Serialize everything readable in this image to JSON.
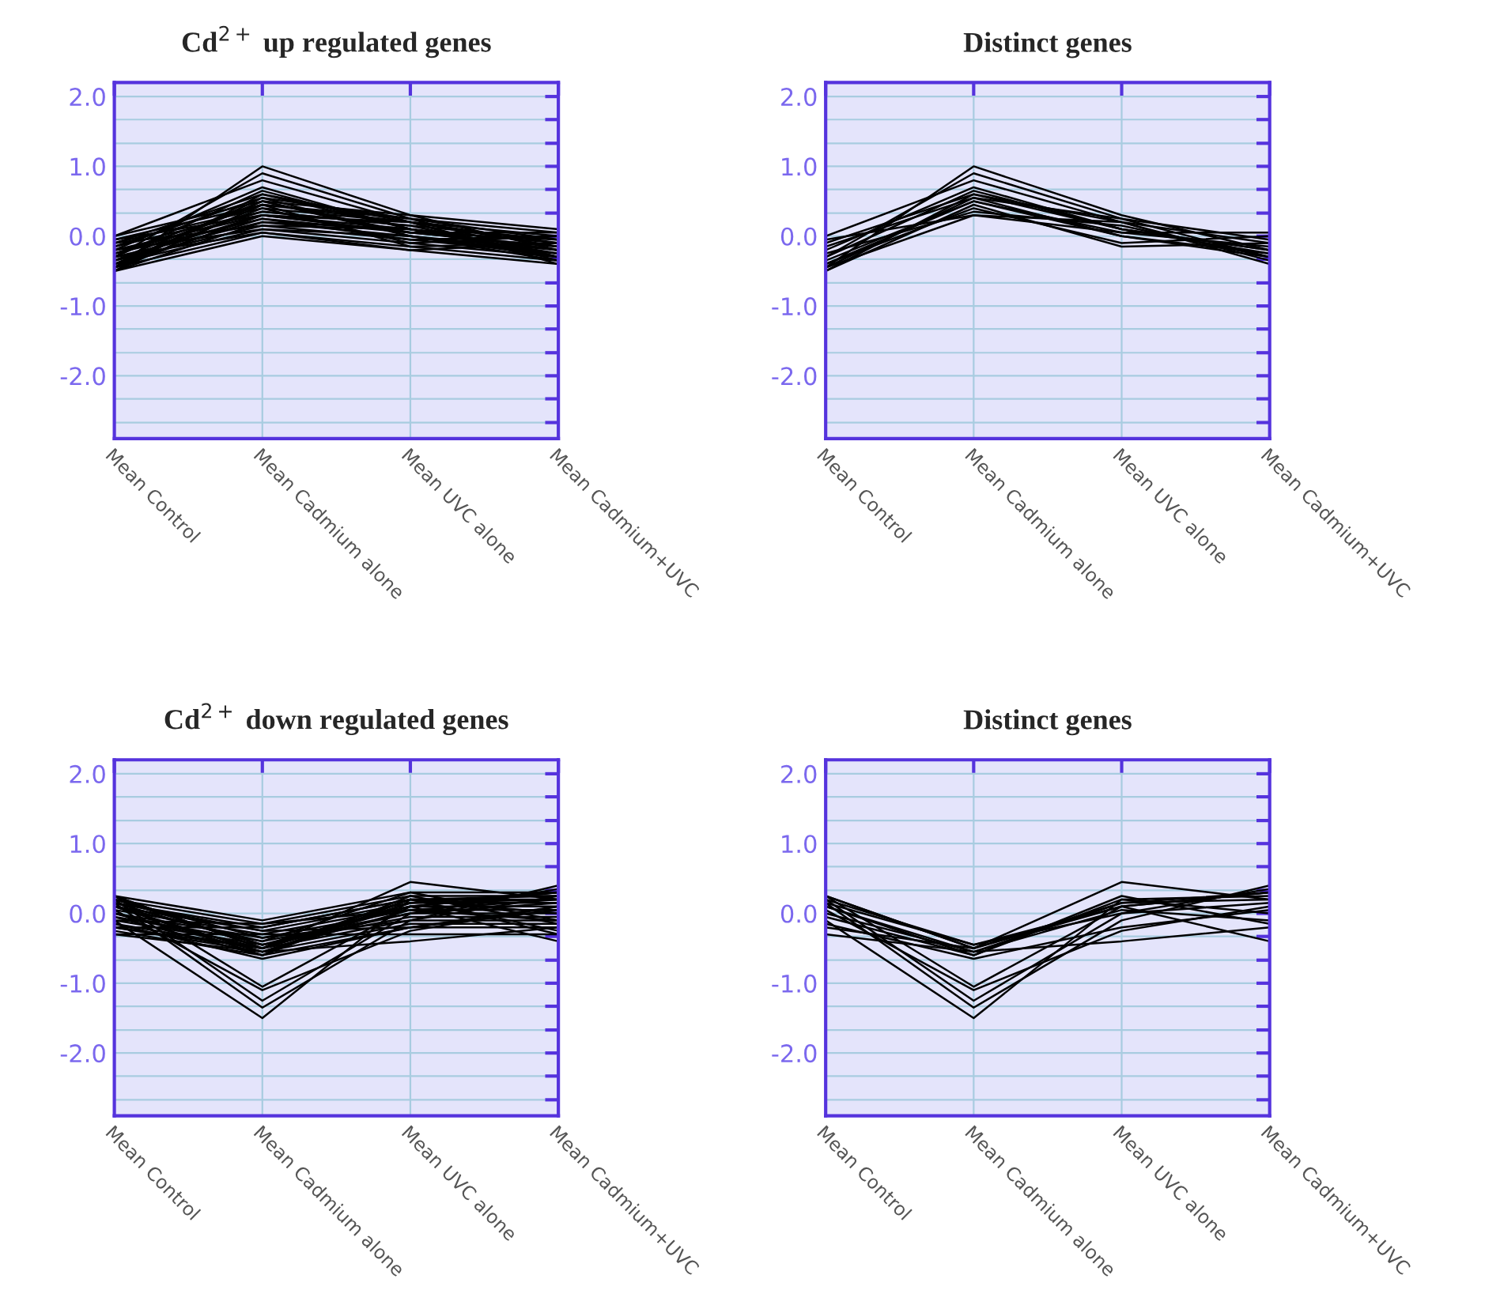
{
  "chart_data": [
    {
      "type": "line",
      "title": "Cd$^{2+}$ up regulated genes",
      "categories": [
        "Mean Control",
        "Mean Cadmium alone",
        "Mean UVC alone",
        "Mean Cadmium+UVC"
      ],
      "ylim": [
        -2.9,
        2.2
      ],
      "yticks": [
        {
          "value": 2,
          "label": "2.0"
        },
        {
          "value": 1.67,
          "label": null
        },
        {
          "value": 1.33,
          "label": null
        },
        {
          "value": 1,
          "label": "1.0"
        },
        {
          "value": 0.67,
          "label": null
        },
        {
          "value": 0.33,
          "label": null
        },
        {
          "value": 0,
          "label": "0.0"
        },
        {
          "value": -0.33,
          "label": null
        },
        {
          "value": -0.67,
          "label": null
        },
        {
          "value": -1,
          "label": "-1.0"
        },
        {
          "value": -1.33,
          "label": null
        },
        {
          "value": -1.67,
          "label": null
        },
        {
          "value": -2,
          "label": "-2.0"
        },
        {
          "value": -2.33,
          "label": null
        },
        {
          "value": -2.67,
          "label": null
        }
      ],
      "grid": true,
      "series": [
        {
          "color": "#000000",
          "values": [
            -0.45,
            1.0,
            0.3,
            -0.2
          ]
        },
        {
          "color": "#000000",
          "values": [
            -0.3,
            0.9,
            0.25,
            -0.3
          ]
        },
        {
          "color": "#000000",
          "values": [
            0.0,
            0.8,
            0.2,
            -0.1
          ]
        },
        {
          "color": "#000000",
          "values": [
            -0.2,
            0.7,
            0.1,
            -0.25
          ]
        },
        {
          "color": "#000000",
          "values": [
            -0.5,
            0.6,
            0.2,
            -0.4
          ]
        },
        {
          "color": "#000000",
          "values": [
            -0.45,
            0.55,
            0.0,
            -0.3
          ]
        },
        {
          "color": "#000000",
          "values": [
            -0.1,
            0.6,
            0.1,
            -0.2
          ]
        },
        {
          "color": "#000000",
          "values": [
            -0.35,
            0.5,
            0.05,
            -0.15
          ]
        },
        {
          "color": "#000000",
          "values": [
            -0.5,
            0.45,
            -0.15,
            -0.1
          ]
        },
        {
          "color": "#000000",
          "values": [
            -0.4,
            0.4,
            -0.1,
            0.0
          ]
        },
        {
          "color": "#000000",
          "values": [
            -0.25,
            0.35,
            0.15,
            -0.3
          ]
        },
        {
          "color": "#000000",
          "values": [
            -0.05,
            0.3,
            0.05,
            0.05
          ]
        },
        {
          "color": "#000000",
          "values": [
            -0.45,
            0.3,
            0.2,
            -0.35
          ]
        },
        {
          "color": "#000000",
          "values": [
            -0.15,
            0.55,
            0.25,
            -0.05
          ]
        },
        {
          "color": "#000000",
          "values": [
            -0.3,
            0.65,
            0.1,
            -0.2
          ]
        },
        {
          "color": "#000000",
          "values": [
            -0.4,
            0.5,
            0.0,
            -0.25
          ]
        },
        {
          "color": "#000000",
          "values": [
            -0.5,
            0.0,
            -0.2,
            -0.4
          ]
        },
        {
          "color": "#000000",
          "values": [
            -0.45,
            0.05,
            -0.15,
            -0.35
          ]
        },
        {
          "color": "#000000",
          "values": [
            -0.4,
            0.1,
            -0.1,
            -0.3
          ]
        },
        {
          "color": "#000000",
          "values": [
            -0.35,
            0.15,
            -0.05,
            -0.25
          ]
        },
        {
          "color": "#000000",
          "values": [
            -0.3,
            0.2,
            0.0,
            -0.2
          ]
        },
        {
          "color": "#000000",
          "values": [
            -0.25,
            0.25,
            0.05,
            -0.15
          ]
        },
        {
          "color": "#000000",
          "values": [
            -0.2,
            0.3,
            0.1,
            -0.1
          ]
        },
        {
          "color": "#000000",
          "values": [
            -0.15,
            0.35,
            0.15,
            -0.05
          ]
        },
        {
          "color": "#000000",
          "values": [
            -0.1,
            0.4,
            0.2,
            0.0
          ]
        },
        {
          "color": "#000000",
          "values": [
            -0.05,
            0.45,
            0.25,
            0.05
          ]
        },
        {
          "color": "#000000",
          "values": [
            0.0,
            0.5,
            0.3,
            0.1
          ]
        },
        {
          "color": "#000000",
          "values": [
            -0.5,
            0.2,
            0.1,
            -0.2
          ]
        },
        {
          "color": "#000000",
          "values": [
            -0.3,
            0.05,
            -0.2,
            -0.1
          ]
        },
        {
          "color": "#000000",
          "values": [
            -0.2,
            0.1,
            0.0,
            -0.35
          ]
        },
        {
          "color": "#000000",
          "values": [
            -0.4,
            0.25,
            -0.05,
            0.0
          ]
        },
        {
          "color": "#000000",
          "values": [
            -0.1,
            0.15,
            0.1,
            -0.3
          ]
        },
        {
          "color": "#000000",
          "values": [
            -0.25,
            0.45,
            0.2,
            -0.15
          ]
        },
        {
          "color": "#000000",
          "values": [
            -0.35,
            0.3,
            0.05,
            -0.05
          ]
        }
      ]
    },
    {
      "type": "line",
      "title": "Distinct genes",
      "categories": [
        "Mean Control",
        "Mean Cadmium alone",
        "Mean UVC alone",
        "Mean Cadmium+UVC"
      ],
      "ylim": [
        -2.9,
        2.2
      ],
      "yticks": [
        {
          "value": 2,
          "label": "2.0"
        },
        {
          "value": 1.67,
          "label": null
        },
        {
          "value": 1.33,
          "label": null
        },
        {
          "value": 1,
          "label": "1.0"
        },
        {
          "value": 0.67,
          "label": null
        },
        {
          "value": 0.33,
          "label": null
        },
        {
          "value": 0,
          "label": "0.0"
        },
        {
          "value": -0.33,
          "label": null
        },
        {
          "value": -0.67,
          "label": null
        },
        {
          "value": -1,
          "label": "-1.0"
        },
        {
          "value": -1.33,
          "label": null
        },
        {
          "value": -1.67,
          "label": null
        },
        {
          "value": -2,
          "label": "-2.0"
        },
        {
          "value": -2.33,
          "label": null
        },
        {
          "value": -2.67,
          "label": null
        }
      ],
      "grid": true,
      "series": [
        {
          "color": "#000000",
          "values": [
            -0.45,
            1.0,
            0.3,
            -0.2
          ]
        },
        {
          "color": "#000000",
          "values": [
            -0.3,
            0.9,
            0.25,
            -0.3
          ]
        },
        {
          "color": "#000000",
          "values": [
            0.0,
            0.8,
            0.2,
            -0.1
          ]
        },
        {
          "color": "#000000",
          "values": [
            -0.2,
            0.7,
            0.1,
            -0.25
          ]
        },
        {
          "color": "#000000",
          "values": [
            -0.5,
            0.6,
            0.2,
            -0.4
          ]
        },
        {
          "color": "#000000",
          "values": [
            -0.45,
            0.55,
            0.0,
            -0.3
          ]
        },
        {
          "color": "#000000",
          "values": [
            -0.1,
            0.6,
            0.1,
            -0.2
          ]
        },
        {
          "color": "#000000",
          "values": [
            -0.35,
            0.5,
            0.05,
            -0.15
          ]
        },
        {
          "color": "#000000",
          "values": [
            -0.5,
            0.45,
            -0.15,
            -0.1
          ]
        },
        {
          "color": "#000000",
          "values": [
            -0.4,
            0.4,
            -0.1,
            0.0
          ]
        },
        {
          "color": "#000000",
          "values": [
            -0.25,
            0.35,
            0.15,
            -0.3
          ]
        },
        {
          "color": "#000000",
          "values": [
            -0.05,
            0.3,
            0.05,
            0.05
          ]
        },
        {
          "color": "#000000",
          "values": [
            -0.45,
            0.3,
            0.2,
            -0.35
          ]
        },
        {
          "color": "#000000",
          "values": [
            -0.15,
            0.55,
            0.25,
            -0.05
          ]
        },
        {
          "color": "#000000",
          "values": [
            -0.3,
            0.65,
            0.1,
            -0.2
          ]
        },
        {
          "color": "#000000",
          "values": [
            -0.4,
            0.5,
            0.0,
            -0.25
          ]
        }
      ]
    },
    {
      "type": "line",
      "title": "Cd$^{2+}$ down regulated genes",
      "categories": [
        "Mean Control",
        "Mean Cadmium alone",
        "Mean UVC alone",
        "Mean Cadmium+UVC"
      ],
      "ylim": [
        -2.9,
        2.2
      ],
      "yticks": [
        {
          "value": 2,
          "label": "2.0"
        },
        {
          "value": 1.67,
          "label": null
        },
        {
          "value": 1.33,
          "label": null
        },
        {
          "value": 1,
          "label": "1.0"
        },
        {
          "value": 0.67,
          "label": null
        },
        {
          "value": 0.33,
          "label": null
        },
        {
          "value": 0,
          "label": "0.0"
        },
        {
          "value": -0.33,
          "label": null
        },
        {
          "value": -0.67,
          "label": null
        },
        {
          "value": -1,
          "label": "-1.0"
        },
        {
          "value": -1.33,
          "label": null
        },
        {
          "value": -1.67,
          "label": null
        },
        {
          "value": -2,
          "label": "-2.0"
        },
        {
          "value": -2.33,
          "label": null
        },
        {
          "value": -2.67,
          "label": null
        }
      ],
      "grid": true,
      "series": [
        {
          "color": "#000000",
          "values": [
            0.25,
            -1.05,
            0.1,
            0.3
          ]
        },
        {
          "color": "#000000",
          "values": [
            0.2,
            -1.25,
            0.0,
            0.35
          ]
        },
        {
          "color": "#000000",
          "values": [
            0.15,
            -1.35,
            -0.1,
            0.4
          ]
        },
        {
          "color": "#000000",
          "values": [
            -0.1,
            -1.5,
            0.2,
            0.25
          ]
        },
        {
          "color": "#000000",
          "values": [
            0.05,
            -1.1,
            -0.25,
            0.1
          ]
        },
        {
          "color": "#000000",
          "values": [
            0.25,
            -0.5,
            0.45,
            0.2
          ]
        },
        {
          "color": "#000000",
          "values": [
            0.2,
            -0.45,
            0.1,
            -0.4
          ]
        },
        {
          "color": "#000000",
          "values": [
            -0.3,
            -0.55,
            -0.4,
            -0.2
          ]
        },
        {
          "color": "#000000",
          "values": [
            0.1,
            -0.6,
            0.2,
            0.0
          ]
        },
        {
          "color": "#000000",
          "values": [
            -0.2,
            -0.5,
            0.15,
            0.3
          ]
        },
        {
          "color": "#000000",
          "values": [
            0.0,
            -0.55,
            0.05,
            -0.1
          ]
        },
        {
          "color": "#000000",
          "values": [
            0.15,
            -0.45,
            0.0,
            0.15
          ]
        },
        {
          "color": "#000000",
          "values": [
            -0.05,
            -0.6,
            0.25,
            -0.15
          ]
        },
        {
          "color": "#000000",
          "values": [
            0.25,
            -0.5,
            0.1,
            0.3
          ]
        },
        {
          "color": "#000000",
          "values": [
            -0.15,
            -0.65,
            -0.2,
            0.05
          ]
        },
        {
          "color": "#000000",
          "values": [
            0.1,
            -0.55,
            0.15,
            0.2
          ]
        },
        {
          "color": "#000000",
          "values": [
            0.25,
            -0.1,
            0.3,
            0.3
          ]
        },
        {
          "color": "#000000",
          "values": [
            0.2,
            -0.15,
            0.25,
            0.25
          ]
        },
        {
          "color": "#000000",
          "values": [
            0.15,
            -0.2,
            0.2,
            0.2
          ]
        },
        {
          "color": "#000000",
          "values": [
            0.1,
            -0.25,
            0.15,
            0.15
          ]
        },
        {
          "color": "#000000",
          "values": [
            0.05,
            -0.3,
            0.1,
            0.1
          ]
        },
        {
          "color": "#000000",
          "values": [
            0.0,
            -0.35,
            0.05,
            0.05
          ]
        },
        {
          "color": "#000000",
          "values": [
            -0.05,
            -0.4,
            0.0,
            0.0
          ]
        },
        {
          "color": "#000000",
          "values": [
            -0.1,
            -0.45,
            -0.05,
            -0.05
          ]
        },
        {
          "color": "#000000",
          "values": [
            -0.15,
            -0.5,
            -0.1,
            -0.1
          ]
        },
        {
          "color": "#000000",
          "values": [
            -0.2,
            -0.55,
            -0.15,
            -0.15
          ]
        },
        {
          "color": "#000000",
          "values": [
            -0.25,
            -0.6,
            -0.2,
            -0.2
          ]
        },
        {
          "color": "#000000",
          "values": [
            -0.3,
            -0.3,
            -0.3,
            -0.3
          ]
        },
        {
          "color": "#000000",
          "values": [
            0.2,
            -0.35,
            -0.1,
            0.25
          ]
        },
        {
          "color": "#000000",
          "values": [
            -0.2,
            -0.2,
            0.2,
            -0.25
          ]
        },
        {
          "color": "#000000",
          "values": [
            0.1,
            -0.4,
            0.3,
            -0.1
          ]
        },
        {
          "color": "#000000",
          "values": [
            -0.1,
            -0.15,
            0.05,
            0.2
          ]
        },
        {
          "color": "#000000",
          "values": [
            0.0,
            -0.5,
            0.2,
            -0.3
          ]
        },
        {
          "color": "#000000",
          "values": [
            0.15,
            -0.25,
            -0.2,
            0.1
          ]
        }
      ]
    },
    {
      "type": "line",
      "title": "Distinct genes",
      "categories": [
        "Mean Control",
        "Mean Cadmium alone",
        "Mean UVC alone",
        "Mean Cadmium+UVC"
      ],
      "ylim": [
        -2.9,
        2.2
      ],
      "yticks": [
        {
          "value": 2,
          "label": "2.0"
        },
        {
          "value": 1.67,
          "label": null
        },
        {
          "value": 1.33,
          "label": null
        },
        {
          "value": 1,
          "label": "1.0"
        },
        {
          "value": 0.67,
          "label": null
        },
        {
          "value": 0.33,
          "label": null
        },
        {
          "value": 0,
          "label": "0.0"
        },
        {
          "value": -0.33,
          "label": null
        },
        {
          "value": -0.67,
          "label": null
        },
        {
          "value": -1,
          "label": "-1.0"
        },
        {
          "value": -1.33,
          "label": null
        },
        {
          "value": -1.67,
          "label": null
        },
        {
          "value": -2,
          "label": "-2.0"
        },
        {
          "value": -2.33,
          "label": null
        },
        {
          "value": -2.67,
          "label": null
        }
      ],
      "grid": true,
      "series": [
        {
          "color": "#000000",
          "values": [
            0.25,
            -1.05,
            0.1,
            0.3
          ]
        },
        {
          "color": "#000000",
          "values": [
            0.2,
            -1.25,
            0.0,
            0.35
          ]
        },
        {
          "color": "#000000",
          "values": [
            0.15,
            -1.35,
            -0.1,
            0.4
          ]
        },
        {
          "color": "#000000",
          "values": [
            -0.1,
            -1.5,
            0.2,
            0.25
          ]
        },
        {
          "color": "#000000",
          "values": [
            0.05,
            -1.1,
            -0.25,
            0.1
          ]
        },
        {
          "color": "#000000",
          "values": [
            0.25,
            -0.5,
            0.45,
            0.2
          ]
        },
        {
          "color": "#000000",
          "values": [
            0.2,
            -0.45,
            0.1,
            -0.4
          ]
        },
        {
          "color": "#000000",
          "values": [
            -0.3,
            -0.55,
            -0.4,
            -0.2
          ]
        },
        {
          "color": "#000000",
          "values": [
            0.1,
            -0.6,
            0.2,
            0.0
          ]
        },
        {
          "color": "#000000",
          "values": [
            -0.2,
            -0.5,
            0.15,
            0.3
          ]
        },
        {
          "color": "#000000",
          "values": [
            0.0,
            -0.55,
            0.05,
            -0.1
          ]
        },
        {
          "color": "#000000",
          "values": [
            0.15,
            -0.45,
            0.0,
            0.15
          ]
        },
        {
          "color": "#000000",
          "values": [
            -0.05,
            -0.6,
            0.25,
            -0.15
          ]
        },
        {
          "color": "#000000",
          "values": [
            0.25,
            -0.5,
            0.1,
            0.3
          ]
        },
        {
          "color": "#000000",
          "values": [
            -0.15,
            -0.65,
            -0.2,
            0.05
          ]
        },
        {
          "color": "#000000",
          "values": [
            0.1,
            -0.55,
            0.15,
            0.2
          ]
        }
      ]
    }
  ]
}
